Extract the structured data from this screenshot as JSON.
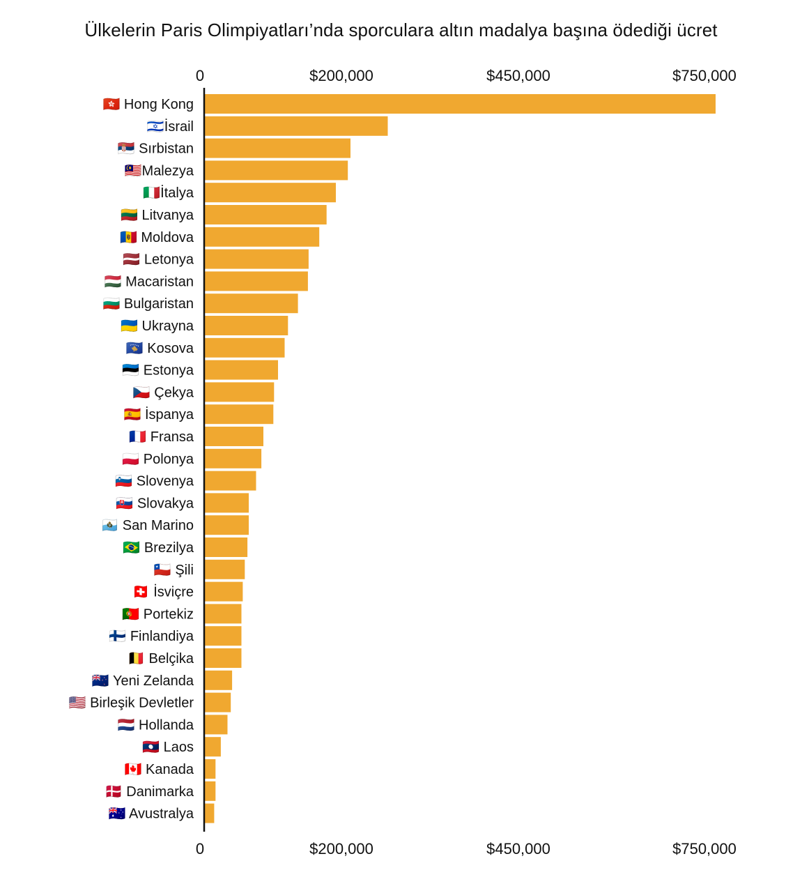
{
  "chart_data": {
    "type": "bar",
    "orientation": "horizontal",
    "title": "Ülkelerin Paris Olimpiyatları’nda sporculara altın madalya başına ödediği ücret",
    "xlabel": "",
    "ylabel": "",
    "x_ticks": [
      {
        "label": "0"
      },
      {
        "label": "$200,000"
      },
      {
        "label": "$450,000"
      },
      {
        "label": "$750,000"
      }
    ],
    "bar_color": "#F0A830",
    "categories": [
      "🇭🇰 Hong Kong",
      "🇮🇱İsrail",
      "🇷🇸 Sırbistan",
      "🇲🇾Malezya",
      "🇮🇹İtalya",
      "🇱🇹 Litvanya",
      "🇲🇩 Moldova",
      "🇱🇻 Letonya",
      "🇭🇺 Macaristan",
      "🇧🇬 Bulgaristan",
      "🇺🇦 Ukrayna",
      "🇽🇰 Kosova",
      "🇪🇪 Estonya",
      "🇨🇿 Çekya",
      "🇪🇸 İspanya",
      "🇫🇷 Fransa",
      "🇵🇱 Polonya",
      "🇸🇮 Slovenya",
      "🇸🇰 Slovakya",
      "🇸🇲 San Marino",
      "🇧🇷 Brezilya",
      "🇨🇱 Şili",
      "🇨🇭 İsviçre",
      "🇵🇹 Portekiz",
      "🇫🇮 Finlandiya",
      "🇧🇪 Belçika",
      "🇳🇿 Yeni Zelanda",
      "🇺🇸 Birleşik Devletler",
      "🇳🇱 Hollanda",
      "🇱🇦 Laos",
      "🇨🇦 Kanada",
      "🇩🇰 Danimarka",
      "🇦🇺 Avustralya"
    ],
    "values": [
      768000,
      275000,
      219000,
      215000,
      197000,
      183000,
      172000,
      156000,
      155000,
      140000,
      125000,
      120000,
      110000,
      104000,
      103000,
      88000,
      85000,
      77000,
      66000,
      66000,
      64000,
      60000,
      57000,
      55000,
      55000,
      55000,
      41000,
      39000,
      34000,
      24000,
      16000,
      16000,
      14000
    ]
  }
}
